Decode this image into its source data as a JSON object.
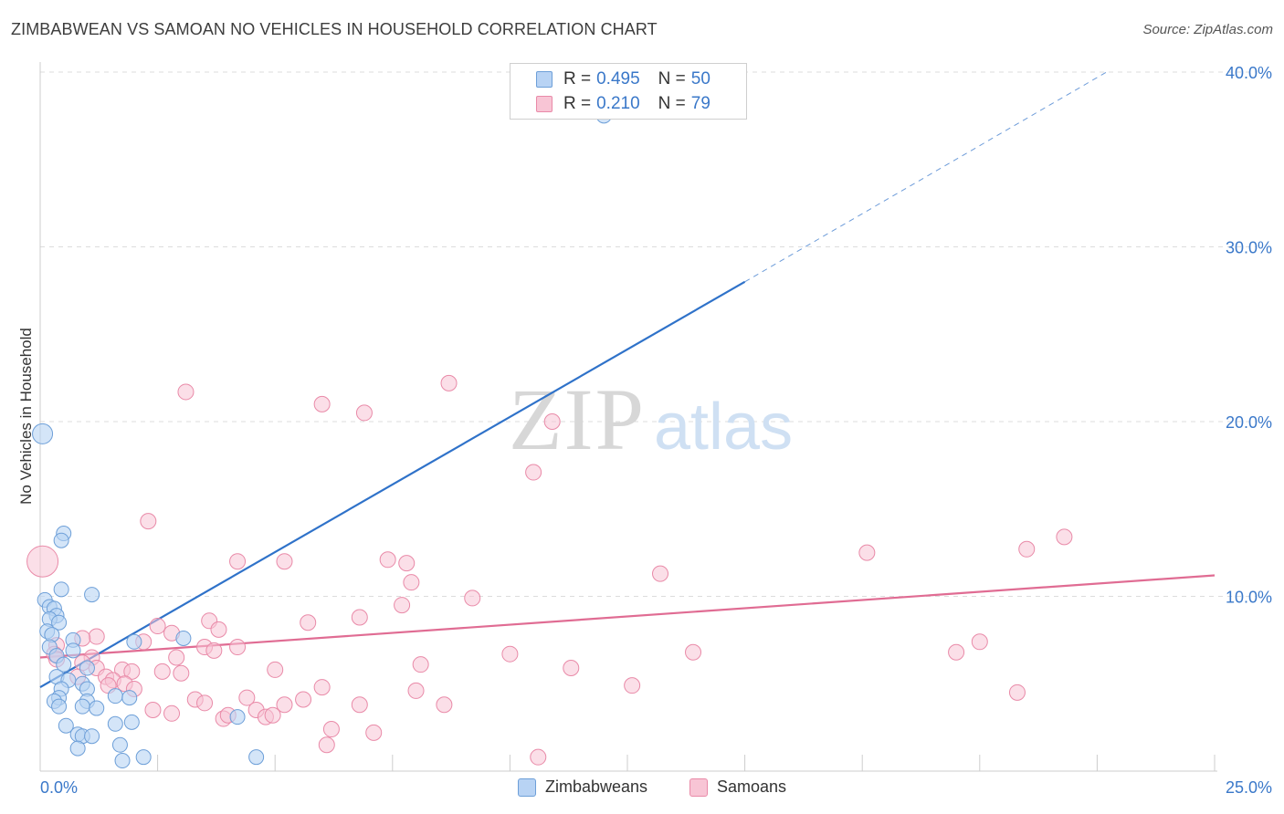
{
  "title": "ZIMBABWEAN VS SAMOAN NO VEHICLES IN HOUSEHOLD CORRELATION CHART",
  "source": "Source: ZipAtlas.com",
  "watermark": {
    "part1": "ZIP",
    "part2": "atlas"
  },
  "legend": {
    "rows": [
      {
        "r_label": "R =",
        "r_value": "0.495",
        "n_label": "N =",
        "n_value": "50"
      },
      {
        "r_label": "R =",
        "r_value": "0.210",
        "n_label": "N =",
        "n_value": "79"
      }
    ]
  },
  "bottom_legend": [
    "Zimbabweans",
    "Samoans"
  ],
  "colors": {
    "blue_fill": "#b8d3f4",
    "blue_stroke": "#6d9fd8",
    "blue_line": "#2f72c9",
    "pink_fill": "#f8c5d5",
    "pink_stroke": "#e98aa8",
    "pink_line": "#e06c93",
    "axis_text": "#3a78c9",
    "grid": "#dcdcdc"
  },
  "chart_data": {
    "type": "scatter",
    "title": "ZIMBABWEAN VS SAMOAN NO VEHICLES IN HOUSEHOLD CORRELATION CHART",
    "xlabel": "",
    "ylabel": "No Vehicles in Household",
    "xlim": [
      0,
      25
    ],
    "ylim": [
      0,
      40
    ],
    "x_tick_labels": [
      {
        "value": 0,
        "label": "0.0%"
      },
      {
        "value": 25,
        "label": "25.0%"
      }
    ],
    "y_tick_labels": [
      {
        "value": 10,
        "label": "10.0%"
      },
      {
        "value": 20,
        "label": "20.0%"
      },
      {
        "value": 30,
        "label": "30.0%"
      },
      {
        "value": 40,
        "label": "40.0%"
      }
    ],
    "series": [
      {
        "name": "Zimbabweans",
        "R": 0.495,
        "N": 50,
        "trend": {
          "x0": 0,
          "y0": 4.8,
          "x1": 15,
          "y1": 28.0,
          "dashed_to_x": 22.7,
          "dashed_to_y": 40.0
        },
        "points": [
          {
            "x": 0.05,
            "y": 19.3,
            "big": true
          },
          {
            "x": 0.5,
            "y": 13.6
          },
          {
            "x": 0.45,
            "y": 13.2
          },
          {
            "x": 0.45,
            "y": 10.4
          },
          {
            "x": 1.1,
            "y": 10.1
          },
          {
            "x": 0.1,
            "y": 9.8
          },
          {
            "x": 0.2,
            "y": 9.4
          },
          {
            "x": 0.3,
            "y": 9.3
          },
          {
            "x": 0.35,
            "y": 8.9
          },
          {
            "x": 0.2,
            "y": 8.7
          },
          {
            "x": 0.4,
            "y": 8.5
          },
          {
            "x": 0.15,
            "y": 8.0
          },
          {
            "x": 0.25,
            "y": 7.8
          },
          {
            "x": 0.7,
            "y": 7.5
          },
          {
            "x": 2.0,
            "y": 7.4
          },
          {
            "x": 3.05,
            "y": 7.6
          },
          {
            "x": 0.2,
            "y": 7.1
          },
          {
            "x": 0.7,
            "y": 6.9
          },
          {
            "x": 0.35,
            "y": 6.6
          },
          {
            "x": 0.5,
            "y": 6.1
          },
          {
            "x": 1.0,
            "y": 5.9
          },
          {
            "x": 0.35,
            "y": 5.4
          },
          {
            "x": 0.6,
            "y": 5.2
          },
          {
            "x": 0.9,
            "y": 5.0
          },
          {
            "x": 1.0,
            "y": 4.7
          },
          {
            "x": 0.45,
            "y": 4.7
          },
          {
            "x": 0.4,
            "y": 4.2
          },
          {
            "x": 0.3,
            "y": 4.0
          },
          {
            "x": 1.0,
            "y": 4.0
          },
          {
            "x": 1.6,
            "y": 4.3
          },
          {
            "x": 1.9,
            "y": 4.2
          },
          {
            "x": 0.4,
            "y": 3.7
          },
          {
            "x": 0.9,
            "y": 3.7
          },
          {
            "x": 1.2,
            "y": 3.6
          },
          {
            "x": 4.2,
            "y": 3.1
          },
          {
            "x": 0.55,
            "y": 2.6
          },
          {
            "x": 1.6,
            "y": 2.7
          },
          {
            "x": 1.95,
            "y": 2.8
          },
          {
            "x": 0.8,
            "y": 2.1
          },
          {
            "x": 0.9,
            "y": 2.0
          },
          {
            "x": 1.1,
            "y": 2.0
          },
          {
            "x": 0.8,
            "y": 1.3
          },
          {
            "x": 1.7,
            "y": 1.5
          },
          {
            "x": 1.75,
            "y": 0.6
          },
          {
            "x": 2.2,
            "y": 0.8
          },
          {
            "x": 4.6,
            "y": 0.8
          },
          {
            "x": 12.0,
            "y": 37.5
          }
        ]
      },
      {
        "name": "Samoans",
        "R": 0.21,
        "N": 79,
        "trend": {
          "x0": 0,
          "y0": 6.5,
          "x1": 25,
          "y1": 11.2
        },
        "points": [
          {
            "x": 0.05,
            "y": 12.0,
            "big": true
          },
          {
            "x": 3.1,
            "y": 21.7
          },
          {
            "x": 6.0,
            "y": 21.0
          },
          {
            "x": 8.7,
            "y": 22.2
          },
          {
            "x": 6.9,
            "y": 20.5
          },
          {
            "x": 10.9,
            "y": 20.0
          },
          {
            "x": 10.5,
            "y": 17.1
          },
          {
            "x": 2.3,
            "y": 14.3
          },
          {
            "x": 4.2,
            "y": 12.0
          },
          {
            "x": 5.2,
            "y": 12.0
          },
          {
            "x": 7.4,
            "y": 12.1
          },
          {
            "x": 7.8,
            "y": 11.9
          },
          {
            "x": 7.9,
            "y": 10.8
          },
          {
            "x": 13.2,
            "y": 11.3
          },
          {
            "x": 17.6,
            "y": 12.5
          },
          {
            "x": 21.0,
            "y": 12.7
          },
          {
            "x": 21.8,
            "y": 13.4
          },
          {
            "x": 9.2,
            "y": 9.9
          },
          {
            "x": 7.7,
            "y": 9.5
          },
          {
            "x": 6.8,
            "y": 8.8
          },
          {
            "x": 5.7,
            "y": 8.5
          },
          {
            "x": 3.6,
            "y": 8.6
          },
          {
            "x": 2.5,
            "y": 8.3
          },
          {
            "x": 3.8,
            "y": 8.1
          },
          {
            "x": 2.8,
            "y": 7.9
          },
          {
            "x": 1.2,
            "y": 7.7
          },
          {
            "x": 0.9,
            "y": 7.6
          },
          {
            "x": 0.35,
            "y": 7.2
          },
          {
            "x": 2.2,
            "y": 7.4
          },
          {
            "x": 3.5,
            "y": 7.1
          },
          {
            "x": 4.2,
            "y": 7.1
          },
          {
            "x": 3.7,
            "y": 6.9
          },
          {
            "x": 0.3,
            "y": 6.7
          },
          {
            "x": 1.1,
            "y": 6.5
          },
          {
            "x": 2.9,
            "y": 6.5
          },
          {
            "x": 0.35,
            "y": 6.4
          },
          {
            "x": 0.9,
            "y": 6.2
          },
          {
            "x": 1.2,
            "y": 5.9
          },
          {
            "x": 1.75,
            "y": 5.8
          },
          {
            "x": 1.95,
            "y": 5.7
          },
          {
            "x": 2.6,
            "y": 5.7
          },
          {
            "x": 3.0,
            "y": 5.6
          },
          {
            "x": 5.0,
            "y": 5.8
          },
          {
            "x": 8.1,
            "y": 6.1
          },
          {
            "x": 10.0,
            "y": 6.7
          },
          {
            "x": 11.3,
            "y": 5.9
          },
          {
            "x": 13.9,
            "y": 6.8
          },
          {
            "x": 19.5,
            "y": 6.8
          },
          {
            "x": 20.0,
            "y": 7.4
          },
          {
            "x": 0.8,
            "y": 5.4
          },
          {
            "x": 1.4,
            "y": 5.4
          },
          {
            "x": 1.55,
            "y": 5.2
          },
          {
            "x": 1.8,
            "y": 5.0
          },
          {
            "x": 1.45,
            "y": 4.9
          },
          {
            "x": 2.0,
            "y": 4.7
          },
          {
            "x": 6.0,
            "y": 4.8
          },
          {
            "x": 8.0,
            "y": 4.6
          },
          {
            "x": 12.6,
            "y": 4.9
          },
          {
            "x": 20.8,
            "y": 4.5
          },
          {
            "x": 3.3,
            "y": 4.1
          },
          {
            "x": 3.5,
            "y": 3.9
          },
          {
            "x": 4.4,
            "y": 4.2
          },
          {
            "x": 5.2,
            "y": 3.8
          },
          {
            "x": 5.6,
            "y": 4.1
          },
          {
            "x": 6.8,
            "y": 3.8
          },
          {
            "x": 8.6,
            "y": 3.8
          },
          {
            "x": 2.4,
            "y": 3.5
          },
          {
            "x": 2.8,
            "y": 3.3
          },
          {
            "x": 4.6,
            "y": 3.5
          },
          {
            "x": 3.9,
            "y": 3.0
          },
          {
            "x": 4.0,
            "y": 3.2
          },
          {
            "x": 4.8,
            "y": 3.1
          },
          {
            "x": 4.95,
            "y": 3.2
          },
          {
            "x": 6.2,
            "y": 2.4
          },
          {
            "x": 7.1,
            "y": 2.2
          },
          {
            "x": 6.1,
            "y": 1.5
          },
          {
            "x": 10.6,
            "y": 0.8
          }
        ]
      }
    ]
  }
}
